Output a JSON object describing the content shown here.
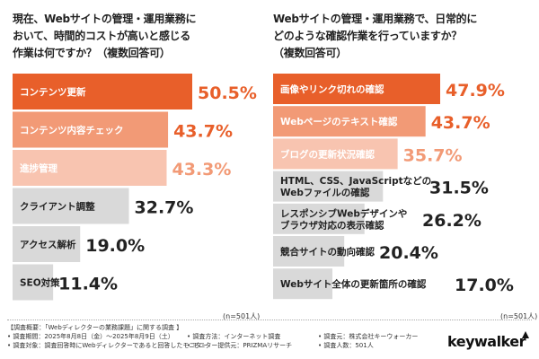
{
  "colors": {
    "top1": "#e85f2a",
    "top2": "#f29a76",
    "top3": "#f8c4b0",
    "other": "#d9d9d9",
    "topText": "#ffffff",
    "otherText": "#222222"
  },
  "left": {
    "question_lines": [
      "現在、Webサイトの管理・運用業務に",
      "おいて、時間的コストが高いと感じる",
      "作業は何ですか？（複数回答可）"
    ],
    "n_note": "(n=501人)"
  },
  "right": {
    "question_lines": [
      "Webサイトの管理・運用業務で、日常的に",
      "どのような確認作業を行っていますか？",
      "（複数回答可）"
    ],
    "n_note": "(n=501人)"
  },
  "chart_data": [
    {
      "type": "bar",
      "orientation": "horizontal",
      "categories": [
        "コンテンツ更新",
        "コンテンツ内容チェック",
        "進捗管理",
        "クライアント調整",
        "アクセス解析",
        "SEO対策"
      ],
      "values": [
        50.5,
        43.7,
        43.3,
        32.7,
        19.0,
        11.4
      ],
      "value_labels": [
        "50.5%",
        "43.7%",
        "43.3%",
        "32.7%",
        "19.0%",
        "11.4%"
      ],
      "xlim": [
        0,
        50.5
      ]
    },
    {
      "type": "bar",
      "orientation": "horizontal",
      "categories": [
        "画像やリンク切れの確認",
        "Webページのテキスト確認",
        "ブログの更新状況確認",
        "HTML、CSS、JavaScriptなどの\nWebファイルの確認",
        "レスポンシブWebデザインや\nブラウザ対応の表示確認",
        "競合サイトの動向確認",
        "Webサイト全体の更新箇所の確認"
      ],
      "values": [
        47.9,
        43.7,
        35.7,
        31.5,
        26.2,
        20.4,
        17.0
      ],
      "value_labels": [
        "47.9%",
        "43.7%",
        "35.7%",
        "31.5%",
        "26.2%",
        "20.4%",
        "17.0%"
      ],
      "xlim": [
        0,
        47.9
      ]
    }
  ],
  "footer": {
    "line1": "【調査概要：「Webディレクターの業務課題」に関する調査 】",
    "period": "• 調査期間：2025年8月8日（金）～2025年8月9日（土）",
    "method": "• 調査方法：インターネット調査",
    "client": "• 調査元：株式会社キーウォーカー",
    "target": "• 調査対象：調査回答時にWebディレクターであると回答したモニター",
    "provider": "• モニター提供元：PRIZMAリサーチ",
    "count": "• 調査人数：501人"
  },
  "logo": "keywalker"
}
